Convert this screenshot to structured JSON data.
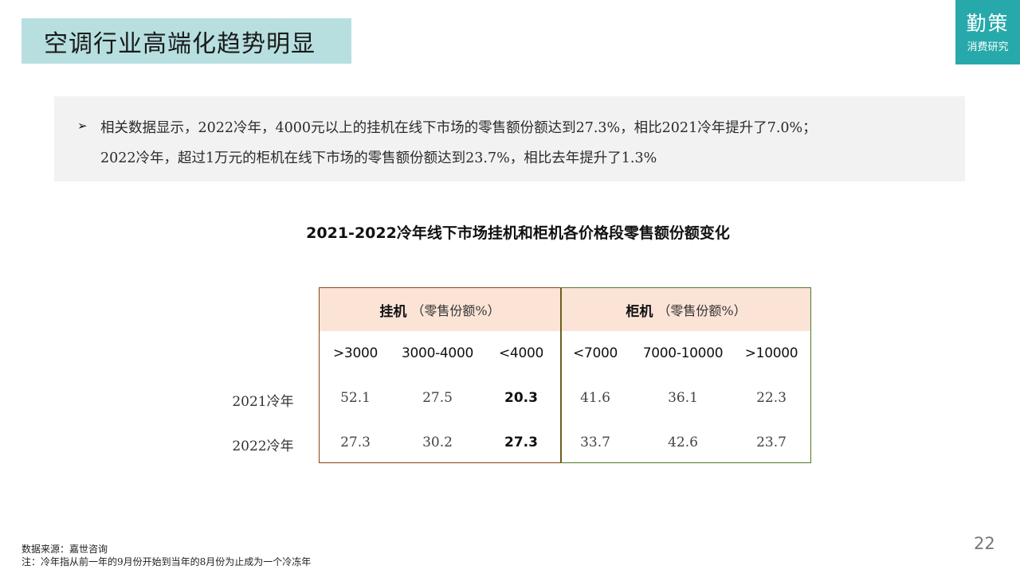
{
  "header": {
    "title": "空调行业高端化趋势明显"
  },
  "logo": {
    "main": "勤策",
    "sub": "消费研究"
  },
  "summary": {
    "bullet": "➢",
    "line1": "相关数据显示，2022冷年，4000元以上的挂机在线下市场的零售额份额达到27.3%，相比2021冷年提升了7.0%；",
    "line2": "2022冷年，超过1万元的柜机在线下市场的零售额份额达到23.7%，相比去年提升了1.3%"
  },
  "chart_data": {
    "type": "table",
    "title": "2021-2022冷年线下市场挂机和柜机各价格段零售额份额变化",
    "groups": [
      {
        "name": "挂机",
        "sub": "（零售份额%）",
        "columns": [
          ">3000",
          "3000-4000",
          "<4000"
        ]
      },
      {
        "name": "柜机",
        "sub": "（零售份额%）",
        "columns": [
          "<7000",
          "7000-10000",
          ">10000"
        ]
      }
    ],
    "rows": [
      {
        "label": "2021冷年",
        "values": [
          "52.1",
          "27.5",
          "20.3",
          "41.6",
          "36.1",
          "22.3"
        ]
      },
      {
        "label": "2022冷年",
        "values": [
          "27.3",
          "30.2",
          "27.3",
          "33.7",
          "42.6",
          "23.7"
        ]
      }
    ],
    "highlight_column": 2,
    "colors": {
      "header_fill": "#fbe3d6",
      "left_border": "#8b4513",
      "right_border": "#4f7a28"
    }
  },
  "footer": {
    "source": "数据来源：嘉世咨询",
    "note": "注：冷年指从前一年的9月份开始到当年的8月份为止成为一个冷冻年",
    "page": "22"
  }
}
